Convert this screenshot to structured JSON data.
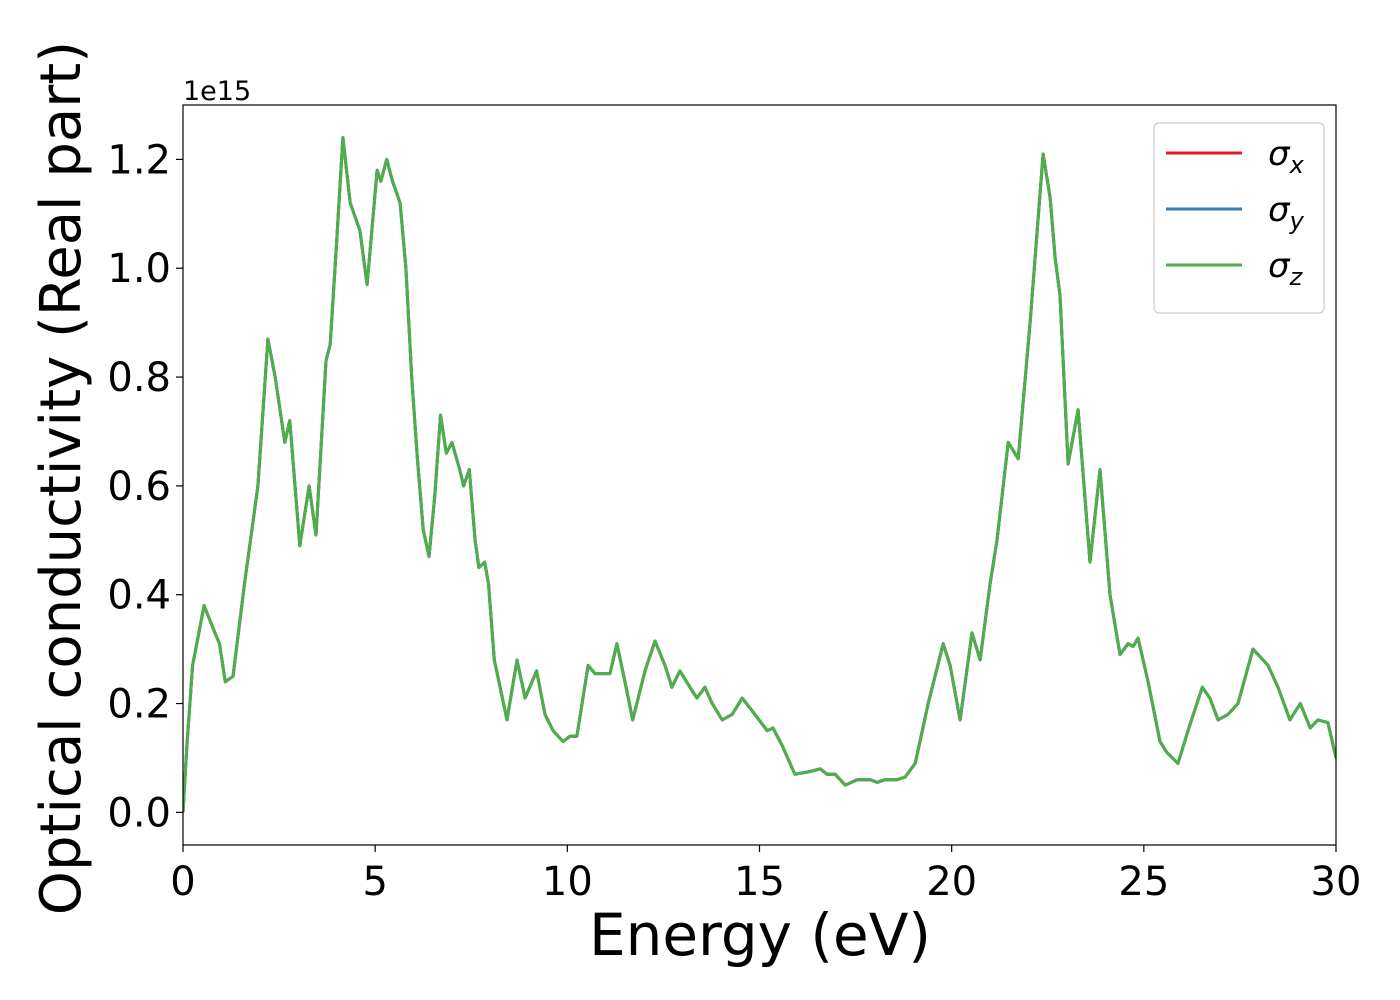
{
  "chart_data": {
    "type": "line",
    "xlabel": "Energy (eV)",
    "ylabel": "Optical conductivity (Real part)",
    "y_offset_text": "1e15",
    "x": [
      0,
      0.1,
      0.25,
      0.55,
      0.83,
      0.95,
      1.1,
      1.3,
      1.6,
      1.95,
      2.21,
      2.4,
      2.65,
      2.78,
      3.04,
      3.28,
      3.46,
      3.72,
      3.83,
      4.0,
      4.16,
      4.35,
      4.6,
      4.79,
      5.05,
      5.15,
      5.3,
      5.45,
      5.65,
      5.8,
      5.95,
      6.1,
      6.25,
      6.4,
      6.55,
      6.7,
      6.85,
      7.0,
      7.2,
      7.3,
      7.45,
      7.6,
      7.7,
      7.85,
      7.95,
      8.1,
      8.25,
      8.43,
      8.69,
      8.9,
      9.2,
      9.42,
      9.63,
      9.89,
      10.07,
      10.25,
      10.54,
      10.72,
      11.11,
      11.29,
      11.5,
      11.7,
      12.02,
      12.28,
      12.54,
      12.72,
      12.93,
      13.19,
      13.37,
      13.58,
      13.77,
      14.03,
      14.29,
      14.55,
      14.88,
      15.2,
      15.35,
      15.61,
      15.92,
      16.32,
      16.58,
      16.76,
      16.97,
      17.23,
      17.54,
      17.88,
      18.06,
      18.27,
      18.58,
      18.79,
      19.05,
      19.39,
      19.78,
      19.96,
      20.22,
      20.53,
      20.74,
      21.0,
      21.18,
      21.47,
      21.73,
      22.04,
      22.38,
      22.56,
      22.69,
      22.82,
      23.03,
      23.29,
      23.6,
      23.86,
      24.12,
      24.38,
      24.59,
      24.72,
      24.85,
      25.11,
      25.42,
      25.6,
      25.89,
      26.15,
      26.52,
      26.72,
      26.93,
      27.19,
      27.45,
      27.84,
      28.23,
      28.49,
      28.8,
      29.07,
      29.33,
      29.53,
      29.79,
      30.0
    ],
    "series": [
      {
        "name": "σx",
        "color": "#e41a1c",
        "values": [
          0,
          0.12,
          0.27,
          0.38,
          0.33,
          0.31,
          0.24,
          0.25,
          0.42,
          0.6,
          0.87,
          0.8,
          0.68,
          0.72,
          0.49,
          0.6,
          0.51,
          0.83,
          0.86,
          1.05,
          1.24,
          1.12,
          1.07,
          0.97,
          1.18,
          1.16,
          1.2,
          1.16,
          1.12,
          1.0,
          0.8,
          0.65,
          0.52,
          0.47,
          0.58,
          0.73,
          0.66,
          0.68,
          0.63,
          0.6,
          0.63,
          0.5,
          0.45,
          0.46,
          0.42,
          0.28,
          0.23,
          0.17,
          0.28,
          0.21,
          0.26,
          0.18,
          0.15,
          0.13,
          0.14,
          0.14,
          0.27,
          0.255,
          0.255,
          0.31,
          0.24,
          0.17,
          0.26,
          0.315,
          0.27,
          0.23,
          0.26,
          0.23,
          0.21,
          0.23,
          0.2,
          0.17,
          0.18,
          0.21,
          0.18,
          0.15,
          0.155,
          0.12,
          0.07,
          0.075,
          0.08,
          0.07,
          0.07,
          0.05,
          0.06,
          0.06,
          0.055,
          0.06,
          0.06,
          0.065,
          0.09,
          0.2,
          0.31,
          0.27,
          0.17,
          0.33,
          0.28,
          0.42,
          0.5,
          0.68,
          0.65,
          0.9,
          1.21,
          1.13,
          1.02,
          0.95,
          0.64,
          0.74,
          0.46,
          0.63,
          0.4,
          0.29,
          0.31,
          0.305,
          0.32,
          0.24,
          0.13,
          0.11,
          0.09,
          0.15,
          0.23,
          0.21,
          0.17,
          0.18,
          0.2,
          0.3,
          0.27,
          0.23,
          0.17,
          0.2,
          0.155,
          0.17,
          0.165,
          0.1
        ]
      },
      {
        "name": "σy",
        "color": "#377eb8",
        "values": [
          0,
          0.12,
          0.27,
          0.38,
          0.33,
          0.31,
          0.24,
          0.25,
          0.42,
          0.6,
          0.87,
          0.8,
          0.68,
          0.72,
          0.49,
          0.6,
          0.51,
          0.83,
          0.86,
          1.05,
          1.24,
          1.12,
          1.07,
          0.97,
          1.18,
          1.16,
          1.2,
          1.16,
          1.12,
          1.0,
          0.8,
          0.65,
          0.52,
          0.47,
          0.58,
          0.73,
          0.66,
          0.68,
          0.63,
          0.6,
          0.63,
          0.5,
          0.45,
          0.46,
          0.42,
          0.28,
          0.23,
          0.17,
          0.28,
          0.21,
          0.26,
          0.18,
          0.15,
          0.13,
          0.14,
          0.14,
          0.27,
          0.255,
          0.255,
          0.31,
          0.24,
          0.17,
          0.26,
          0.315,
          0.27,
          0.23,
          0.26,
          0.23,
          0.21,
          0.23,
          0.2,
          0.17,
          0.18,
          0.21,
          0.18,
          0.15,
          0.155,
          0.12,
          0.07,
          0.075,
          0.08,
          0.07,
          0.07,
          0.05,
          0.06,
          0.06,
          0.055,
          0.06,
          0.06,
          0.065,
          0.09,
          0.2,
          0.31,
          0.27,
          0.17,
          0.33,
          0.28,
          0.42,
          0.5,
          0.68,
          0.65,
          0.9,
          1.21,
          1.13,
          1.02,
          0.95,
          0.64,
          0.74,
          0.46,
          0.63,
          0.4,
          0.29,
          0.31,
          0.305,
          0.32,
          0.24,
          0.13,
          0.11,
          0.09,
          0.15,
          0.23,
          0.21,
          0.17,
          0.18,
          0.2,
          0.3,
          0.27,
          0.23,
          0.17,
          0.2,
          0.155,
          0.17,
          0.165,
          0.1
        ]
      },
      {
        "name": "σz",
        "color": "#4daf4a",
        "values": [
          0,
          0.12,
          0.27,
          0.38,
          0.33,
          0.31,
          0.24,
          0.25,
          0.42,
          0.6,
          0.87,
          0.8,
          0.68,
          0.72,
          0.49,
          0.6,
          0.51,
          0.83,
          0.86,
          1.05,
          1.24,
          1.12,
          1.07,
          0.97,
          1.18,
          1.16,
          1.2,
          1.16,
          1.12,
          1.0,
          0.8,
          0.65,
          0.52,
          0.47,
          0.58,
          0.73,
          0.66,
          0.68,
          0.63,
          0.6,
          0.63,
          0.5,
          0.45,
          0.46,
          0.42,
          0.28,
          0.23,
          0.17,
          0.28,
          0.21,
          0.26,
          0.18,
          0.15,
          0.13,
          0.14,
          0.14,
          0.27,
          0.255,
          0.255,
          0.31,
          0.24,
          0.17,
          0.26,
          0.315,
          0.27,
          0.23,
          0.26,
          0.23,
          0.21,
          0.23,
          0.2,
          0.17,
          0.18,
          0.21,
          0.18,
          0.15,
          0.155,
          0.12,
          0.07,
          0.075,
          0.08,
          0.07,
          0.07,
          0.05,
          0.06,
          0.06,
          0.055,
          0.06,
          0.06,
          0.065,
          0.09,
          0.2,
          0.31,
          0.27,
          0.17,
          0.33,
          0.28,
          0.42,
          0.5,
          0.68,
          0.65,
          0.9,
          1.21,
          1.13,
          1.02,
          0.95,
          0.64,
          0.74,
          0.46,
          0.63,
          0.4,
          0.29,
          0.31,
          0.305,
          0.32,
          0.24,
          0.13,
          0.11,
          0.09,
          0.15,
          0.23,
          0.21,
          0.17,
          0.18,
          0.2,
          0.3,
          0.27,
          0.23,
          0.17,
          0.2,
          0.155,
          0.17,
          0.165,
          0.1
        ]
      }
    ],
    "xlim": [
      0,
      30
    ],
    "xticks": [
      0,
      5,
      10,
      15,
      20,
      25,
      30
    ],
    "ylim": [
      -0.06,
      1.3
    ],
    "yticks": [
      {
        "value": 0,
        "label": "0.0"
      },
      0.2,
      0.4,
      0.6,
      0.8,
      {
        "value": 1,
        "label": "1.0"
      },
      1.2
    ],
    "grid": false,
    "legend": "upper right"
  }
}
